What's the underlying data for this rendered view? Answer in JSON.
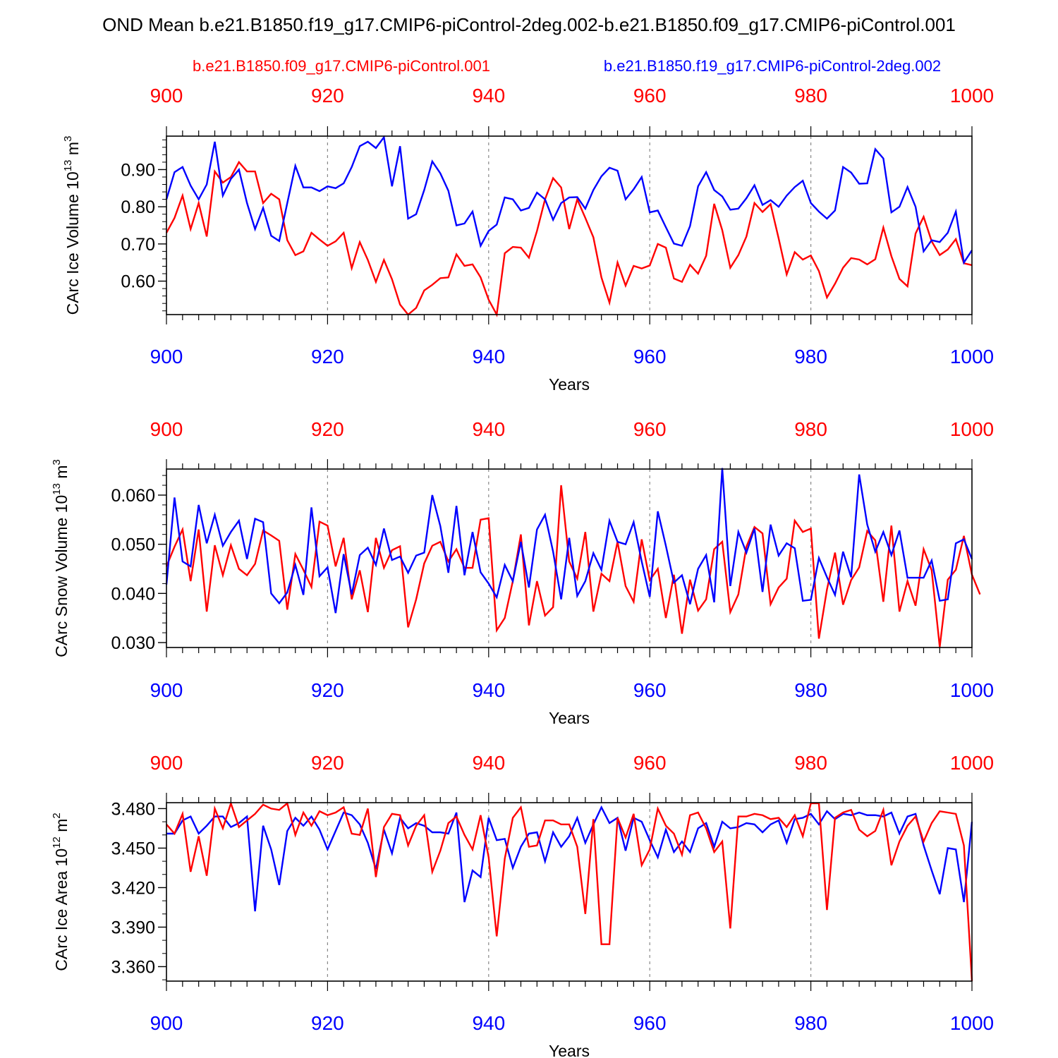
{
  "title": "OND Mean b.e21.B1850.f19_g17.CMIP6-piControl-2deg.002-b.e21.B1850.f09_g17.CMIP6-piControl.001",
  "legend": {
    "red_label": "b.e21.B1850.f09_g17.CMIP6-piControl.001",
    "blue_label": "b.e21.B1850.f19_g17.CMIP6-piControl-2deg.002"
  },
  "colors": {
    "red": "#ff0000",
    "blue": "#0000ff",
    "axis": "#000000",
    "grid": "#888888"
  },
  "chart_data": [
    {
      "type": "line",
      "ylabel_main": "CArc Ice Volume 10",
      "ylabel_exp": "13",
      "ylabel_unit": " m",
      "ylabel_unit_exp": "3",
      "xlabel": "Years",
      "xlim": [
        900,
        1000
      ],
      "ylim": [
        0.51,
        0.99
      ],
      "yticks": [
        0.6,
        0.7,
        0.8,
        0.9
      ],
      "ytick_labels": [
        "0.60",
        "0.70",
        "0.80",
        "0.90"
      ],
      "yminor": [
        0.52,
        0.54,
        0.56,
        0.58,
        0.62,
        0.64,
        0.66,
        0.68,
        0.72,
        0.74,
        0.76,
        0.78,
        0.82,
        0.84,
        0.86,
        0.88,
        0.92,
        0.94,
        0.96,
        0.98
      ],
      "xticks": [
        900,
        920,
        940,
        960,
        980,
        1000
      ],
      "xtick_labels": [
        "900",
        "920",
        "940",
        "960",
        "980",
        "1000"
      ],
      "series": [
        {
          "name": "b.e21.B1850.f09_g17.CMIP6-piControl.001",
          "color": "red",
          "x_start": 900,
          "values": [
            0.73,
            0.77,
            0.83,
            0.74,
            0.81,
            0.72,
            0.895,
            0.865,
            0.88,
            0.92,
            0.895,
            0.895,
            0.81,
            0.835,
            0.82,
            0.71,
            0.67,
            0.68,
            0.73,
            0.712,
            0.695,
            0.707,
            0.73,
            0.635,
            0.705,
            0.657,
            0.598,
            0.657,
            0.605,
            0.537,
            0.51,
            0.528,
            0.575,
            0.59,
            0.608,
            0.61,
            0.672,
            0.641,
            0.645,
            0.61,
            0.55,
            0.51,
            0.675,
            0.692,
            0.69,
            0.663,
            0.735,
            0.82,
            0.877,
            0.852,
            0.74,
            0.82,
            0.77,
            0.718,
            0.61,
            0.542,
            0.65,
            0.588,
            0.641,
            0.634,
            0.642,
            0.7,
            0.69,
            0.607,
            0.598,
            0.644,
            0.62,
            0.668,
            0.808,
            0.737,
            0.636,
            0.67,
            0.72,
            0.81,
            0.786,
            0.807,
            0.715,
            0.618,
            0.678,
            0.658,
            0.669,
            0.627,
            0.556,
            0.593,
            0.636,
            0.662,
            0.658,
            0.645,
            0.659,
            0.744,
            0.667,
            0.606,
            0.586,
            0.728,
            0.773,
            0.707,
            0.67,
            0.685,
            0.713,
            0.648,
            0.643
          ]
        },
        {
          "name": "b.e21.B1850.f19_g17.CMIP6-piControl-2deg.002",
          "color": "blue",
          "x_start": 900,
          "values": [
            0.82,
            0.893,
            0.907,
            0.857,
            0.82,
            0.86,
            0.975,
            0.83,
            0.875,
            0.9,
            0.81,
            0.74,
            0.797,
            0.722,
            0.708,
            0.81,
            0.91,
            0.852,
            0.852,
            0.842,
            0.855,
            0.85,
            0.863,
            0.907,
            0.963,
            0.975,
            0.958,
            0.987,
            0.855,
            0.963,
            0.768,
            0.78,
            0.845,
            0.922,
            0.89,
            0.843,
            0.75,
            0.755,
            0.787,
            0.695,
            0.735,
            0.752,
            0.825,
            0.82,
            0.79,
            0.797,
            0.838,
            0.82,
            0.765,
            0.81,
            0.825,
            0.826,
            0.795,
            0.845,
            0.882,
            0.905,
            0.897,
            0.82,
            0.847,
            0.88,
            0.785,
            0.79,
            0.745,
            0.701,
            0.695,
            0.748,
            0.855,
            0.893,
            0.845,
            0.828,
            0.792,
            0.795,
            0.823,
            0.858,
            0.805,
            0.818,
            0.8,
            0.83,
            0.853,
            0.87,
            0.81,
            0.787,
            0.768,
            0.79,
            0.907,
            0.892,
            0.862,
            0.863,
            0.955,
            0.93,
            0.785,
            0.8,
            0.853,
            0.8,
            0.68,
            0.71,
            0.705,
            0.73,
            0.787,
            0.65,
            0.683
          ]
        }
      ]
    },
    {
      "type": "line",
      "ylabel_main": "CArc Snow Volume 10",
      "ylabel_exp": "13",
      "ylabel_unit": " m",
      "ylabel_unit_exp": "3",
      "xlabel": "Years",
      "xlim": [
        900,
        1000
      ],
      "ylim": [
        0.029,
        0.0653
      ],
      "yticks": [
        0.03,
        0.04,
        0.05,
        0.06
      ],
      "ytick_labels": [
        "0.030",
        "0.040",
        "0.050",
        "0.060"
      ],
      "yminor": [
        0.032,
        0.034,
        0.036,
        0.038,
        0.042,
        0.044,
        0.046,
        0.048,
        0.052,
        0.054,
        0.056,
        0.058,
        0.062,
        0.064
      ],
      "xticks": [
        900,
        920,
        940,
        960,
        980,
        1000
      ],
      "xtick_labels": [
        "900",
        "920",
        "940",
        "960",
        "980",
        "1000"
      ],
      "series": [
        {
          "name": "b.e21.B1850.f09_g17.CMIP6-piControl.001",
          "color": "red",
          "x_start": 900,
          "values": [
            0.0455,
            0.0495,
            0.053,
            0.0425,
            0.053,
            0.0363,
            0.0498,
            0.0437,
            0.0498,
            0.045,
            0.0437,
            0.046,
            0.0528,
            0.0518,
            0.0507,
            0.0367,
            0.048,
            0.0448,
            0.0413,
            0.0546,
            0.0538,
            0.0455,
            0.0513,
            0.0388,
            0.0447,
            0.0362,
            0.0513,
            0.0452,
            0.0488,
            0.0496,
            0.0331,
            0.0388,
            0.0461,
            0.0497,
            0.0505,
            0.0465,
            0.049,
            0.0452,
            0.0452,
            0.055,
            0.0553,
            0.0325,
            0.035,
            0.0425,
            0.052,
            0.0335,
            0.0425,
            0.0355,
            0.0372,
            0.062,
            0.0465,
            0.043,
            0.0525,
            0.0363,
            0.044,
            0.0425,
            0.0505,
            0.0415,
            0.0383,
            0.051,
            0.0427,
            0.045,
            0.035,
            0.0438,
            0.0318,
            0.0428,
            0.0365,
            0.0388,
            0.049,
            0.0505,
            0.0362,
            0.0398,
            0.0495,
            0.0535,
            0.0522,
            0.0378,
            0.0412,
            0.043,
            0.0548,
            0.0525,
            0.0532,
            0.0308,
            0.0408,
            0.0483,
            0.0377,
            0.0427,
            0.0453,
            0.0527,
            0.0508,
            0.0383,
            0.0538,
            0.0363,
            0.0425,
            0.0375,
            0.049,
            0.0447,
            0.0291,
            0.0428,
            0.0448,
            0.0517,
            0.0438,
            0.0398
          ]
        },
        {
          "name": "b.e21.B1850.f19_g17.CMIP6-piControl-2deg.002",
          "color": "blue",
          "x_start": 900,
          "values": [
            0.0418,
            0.0595,
            0.0465,
            0.0455,
            0.058,
            0.0502,
            0.056,
            0.0497,
            0.0525,
            0.0548,
            0.047,
            0.0552,
            0.0545,
            0.04,
            0.038,
            0.0402,
            0.0458,
            0.0397,
            0.0575,
            0.0435,
            0.0453,
            0.036,
            0.048,
            0.0398,
            0.0478,
            0.0493,
            0.0458,
            0.0532,
            0.0468,
            0.0475,
            0.0442,
            0.0477,
            0.0483,
            0.06,
            0.0537,
            0.0442,
            0.0578,
            0.0437,
            0.0525,
            0.0443,
            0.042,
            0.0392,
            0.0458,
            0.0425,
            0.0505,
            0.0412,
            0.053,
            0.056,
            0.0485,
            0.0388,
            0.0513,
            0.0395,
            0.0425,
            0.0482,
            0.0448,
            0.0548,
            0.0505,
            0.05,
            0.0545,
            0.0465,
            0.0393,
            0.0567,
            0.0497,
            0.0422,
            0.0437,
            0.0378,
            0.045,
            0.0478,
            0.0382,
            0.0655,
            0.0415,
            0.0525,
            0.0483,
            0.0532,
            0.0403,
            0.054,
            0.0477,
            0.0502,
            0.0492,
            0.0385,
            0.0387,
            0.0472,
            0.0433,
            0.0397,
            0.0485,
            0.0433,
            0.0642,
            0.054,
            0.0485,
            0.0525,
            0.0478,
            0.0528,
            0.0432,
            0.0432,
            0.0432,
            0.0467,
            0.0385,
            0.0388,
            0.0502,
            0.051,
            0.047
          ]
        }
      ]
    },
    {
      "type": "line",
      "ylabel_main": "CArc Ice Area 10",
      "ylabel_exp": "12",
      "ylabel_unit": " m",
      "ylabel_unit_exp": "2",
      "xlabel": "Years",
      "xlim": [
        900,
        1000
      ],
      "ylim": [
        3.349,
        3.4845
      ],
      "yticks": [
        3.36,
        3.39,
        3.42,
        3.45,
        3.48
      ],
      "ytick_labels": [
        "3.360",
        "3.390",
        "3.420",
        "3.450",
        "3.480"
      ],
      "yminor": [
        3.35,
        3.37,
        3.38,
        3.4,
        3.41,
        3.43,
        3.44,
        3.46,
        3.47
      ],
      "xticks": [
        900,
        920,
        940,
        960,
        980,
        1000
      ],
      "xtick_labels": [
        "900",
        "920",
        "940",
        "960",
        "980",
        "1000"
      ],
      "series": [
        {
          "name": "b.e21.B1850.f09_g17.CMIP6-piControl.001",
          "color": "red",
          "x_start": 900,
          "values": [
            3.468,
            3.461,
            3.476,
            3.432,
            3.459,
            3.429,
            3.48,
            3.465,
            3.484,
            3.466,
            3.471,
            3.476,
            3.483,
            3.48,
            3.479,
            3.484,
            3.46,
            3.477,
            3.467,
            3.478,
            3.475,
            3.477,
            3.481,
            3.461,
            3.46,
            3.48,
            3.428,
            3.466,
            3.476,
            3.475,
            3.452,
            3.467,
            3.475,
            3.432,
            3.448,
            3.469,
            3.474,
            3.46,
            3.449,
            3.475,
            3.443,
            3.383,
            3.442,
            3.473,
            3.481,
            3.451,
            3.452,
            3.471,
            3.471,
            3.468,
            3.468,
            3.451,
            3.4,
            3.472,
            3.377,
            3.377,
            3.473,
            3.458,
            3.476,
            3.437,
            3.449,
            3.48,
            3.467,
            3.461,
            3.445,
            3.475,
            3.477,
            3.465,
            3.447,
            3.455,
            3.389,
            3.474,
            3.474,
            3.476,
            3.475,
            3.472,
            3.473,
            3.466,
            3.475,
            3.459,
            3.484,
            3.484,
            3.403,
            3.473,
            3.477,
            3.479,
            3.464,
            3.459,
            3.463,
            3.479,
            3.437,
            3.455,
            3.467,
            3.474,
            3.455,
            3.469,
            3.478,
            3.477,
            3.476,
            3.452,
            3.349
          ]
        },
        {
          "name": "b.e21.B1850.f19_g17.CMIP6-piControl-2deg.002",
          "color": "blue",
          "x_start": 900,
          "values": [
            3.461,
            3.461,
            3.471,
            3.474,
            3.461,
            3.467,
            3.474,
            3.474,
            3.466,
            3.469,
            3.474,
            3.402,
            3.467,
            3.449,
            3.422,
            3.463,
            3.473,
            3.467,
            3.474,
            3.464,
            3.449,
            3.463,
            3.477,
            3.475,
            3.468,
            3.454,
            3.434,
            3.464,
            3.446,
            3.473,
            3.465,
            3.469,
            3.467,
            3.462,
            3.462,
            3.461,
            3.477,
            3.409,
            3.433,
            3.428,
            3.473,
            3.456,
            3.457,
            3.435,
            3.451,
            3.461,
            3.462,
            3.44,
            3.462,
            3.451,
            3.459,
            3.473,
            3.454,
            3.468,
            3.481,
            3.469,
            3.473,
            3.448,
            3.473,
            3.47,
            3.456,
            3.443,
            3.464,
            3.447,
            3.455,
            3.447,
            3.465,
            3.469,
            3.451,
            3.47,
            3.465,
            3.466,
            3.469,
            3.468,
            3.462,
            3.468,
            3.471,
            3.454,
            3.472,
            3.473,
            3.476,
            3.468,
            3.478,
            3.472,
            3.476,
            3.475,
            3.477,
            3.475,
            3.475,
            3.474,
            3.477,
            3.461,
            3.474,
            3.476,
            3.452,
            3.433,
            3.415,
            3.45,
            3.449,
            3.409,
            3.47
          ]
        }
      ]
    }
  ]
}
